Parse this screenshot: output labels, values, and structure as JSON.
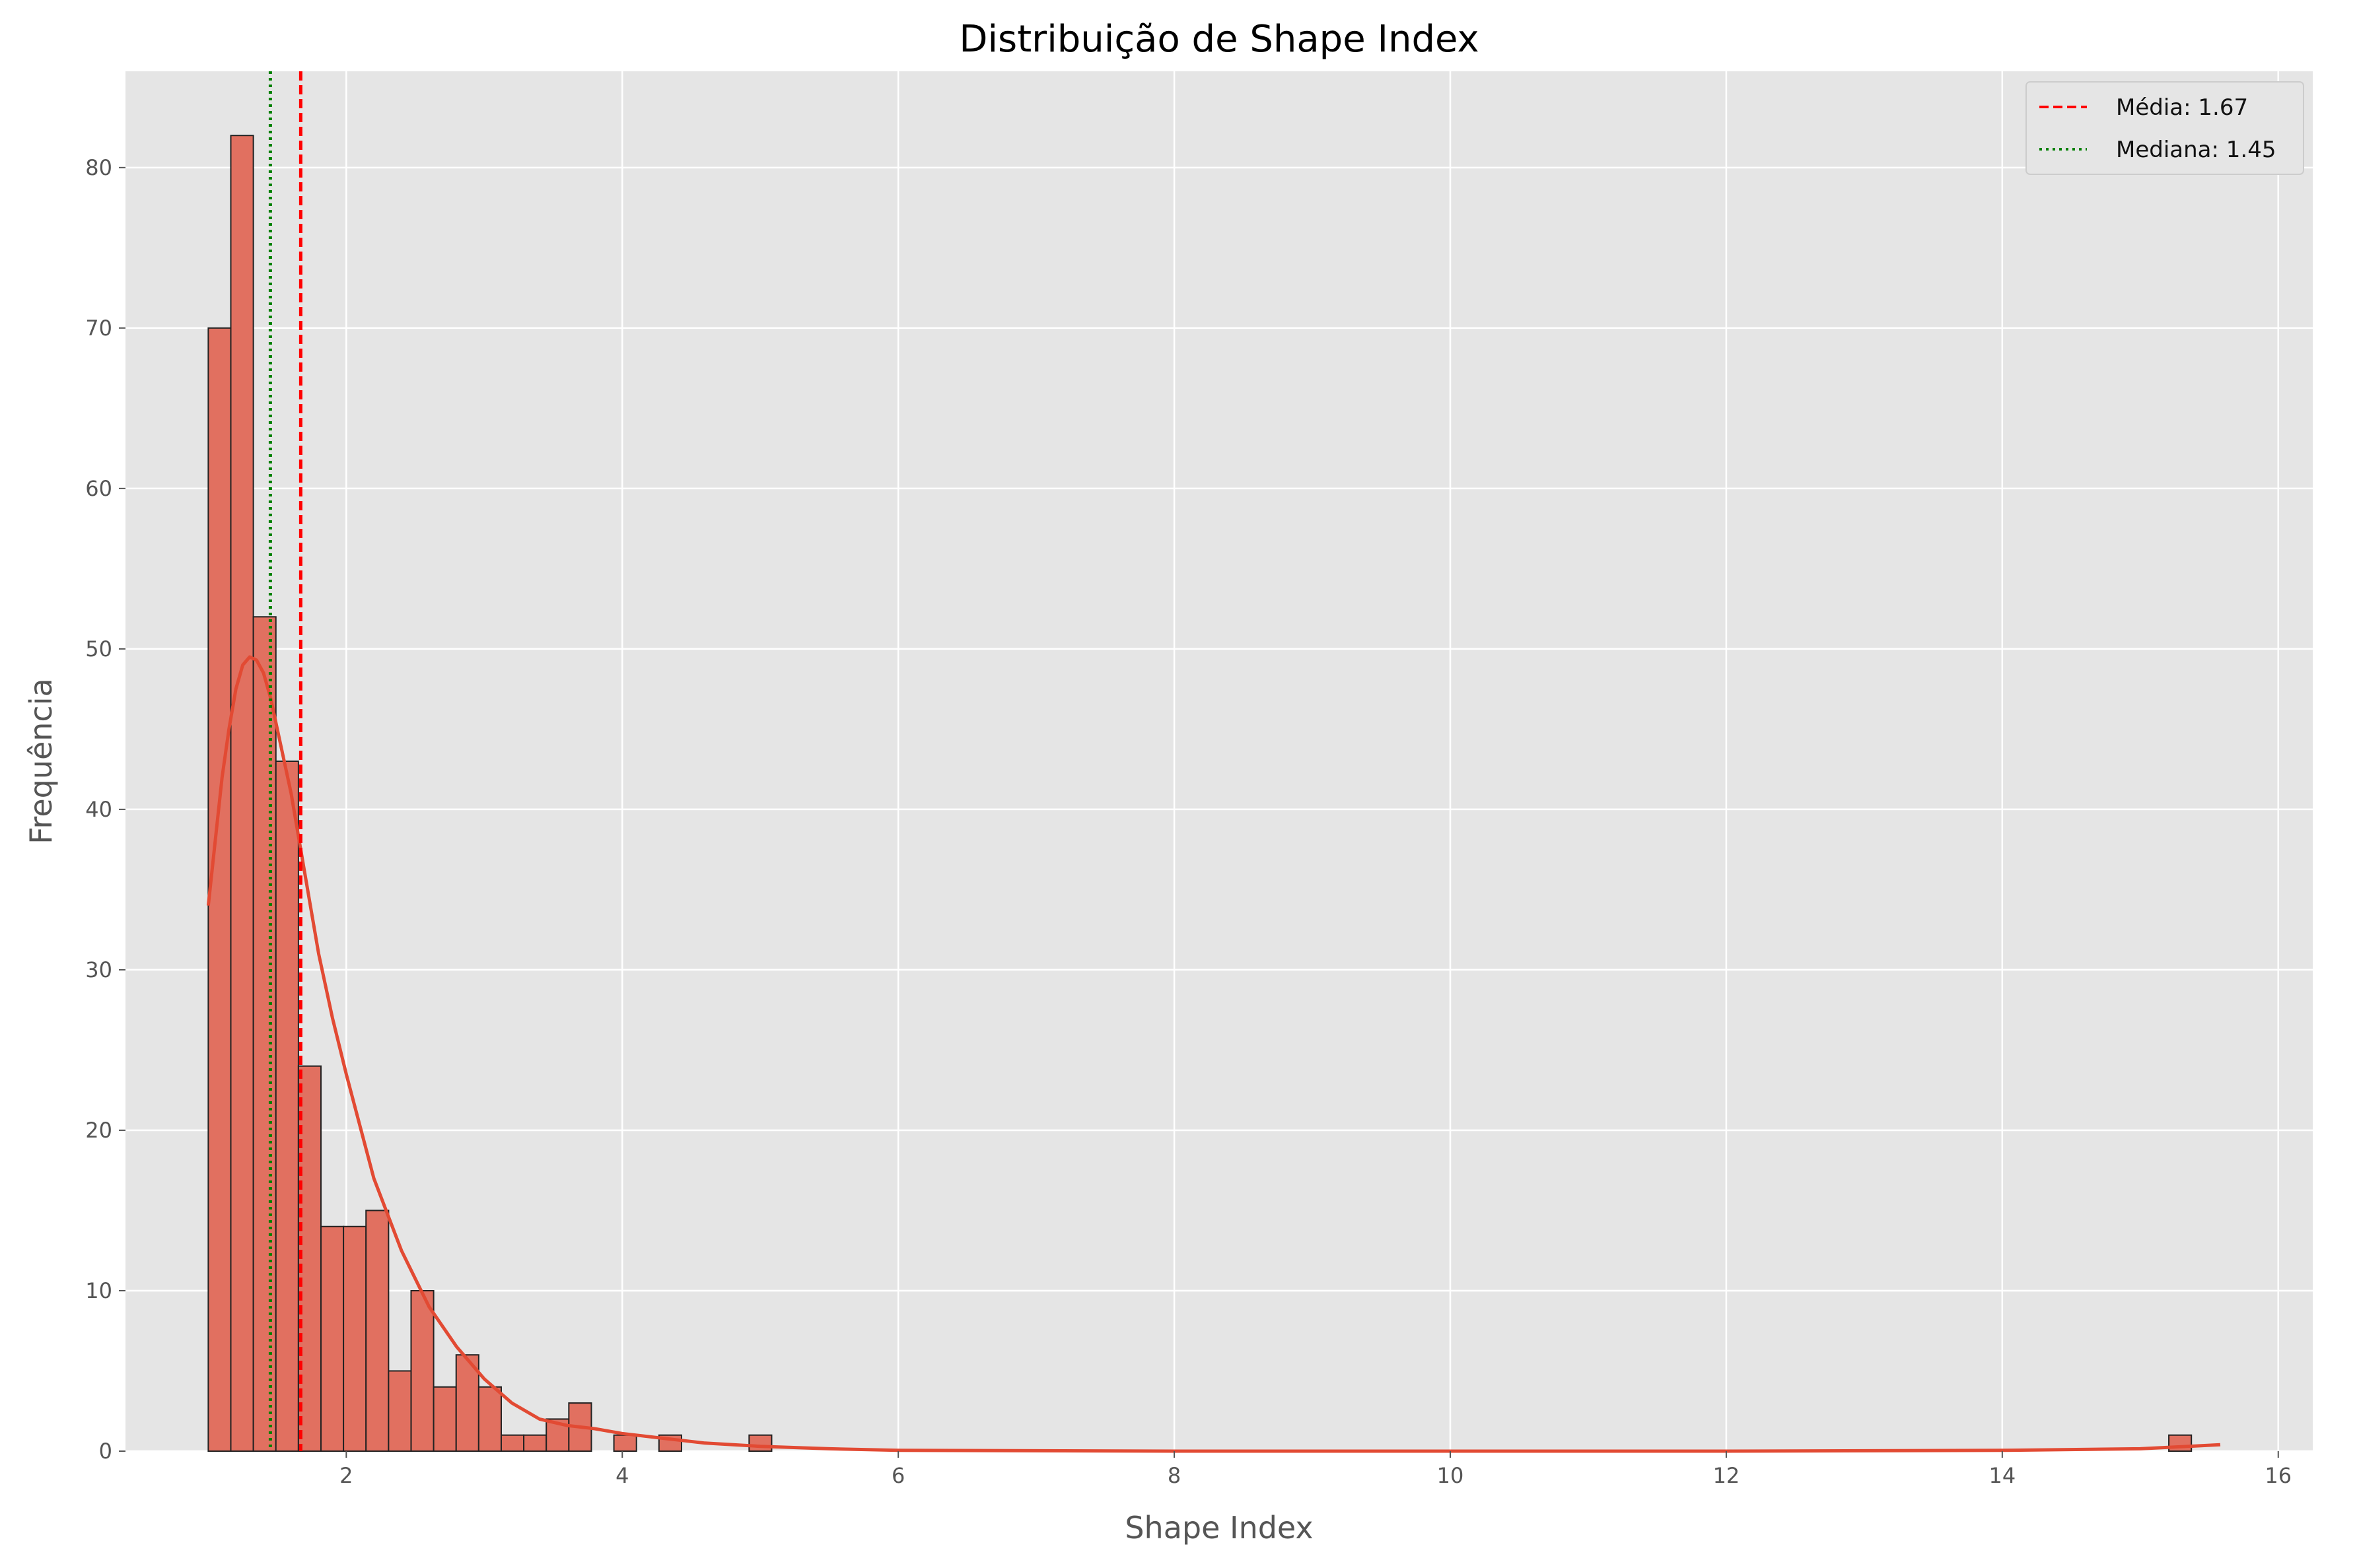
{
  "chart_data": {
    "type": "bar",
    "title": "Distribuição de Shape Index",
    "xlabel": "Shape Index",
    "ylabel": "Frequência",
    "xlim": [
      0.4,
      16.25
    ],
    "ylim": [
      0,
      86
    ],
    "xticks": [
      2,
      4,
      6,
      8,
      10,
      12,
      14,
      16
    ],
    "yticks": [
      0,
      10,
      20,
      30,
      40,
      50,
      60,
      70,
      80
    ],
    "grid": true,
    "legend_position": "top-right",
    "bin_start": 1.0,
    "bin_width": 0.1633,
    "counts": [
      70,
      82,
      52,
      43,
      24,
      14,
      14,
      15,
      5,
      10,
      4,
      6,
      4,
      1,
      1,
      2,
      3,
      0,
      1,
      0,
      1,
      0,
      0,
      0,
      1,
      0,
      0,
      0,
      0,
      0,
      0,
      0,
      0,
      0,
      0,
      0,
      0,
      0,
      0,
      0,
      0,
      0,
      0,
      0,
      0,
      0,
      0,
      0,
      0,
      0,
      0,
      0,
      0,
      0,
      0,
      0,
      0,
      0,
      0,
      0,
      0,
      0,
      0,
      0,
      0,
      0,
      0,
      0,
      0,
      0,
      0,
      0,
      0,
      0,
      0,
      0,
      0,
      0,
      0,
      0,
      0,
      0,
      0,
      0,
      0,
      0,
      0,
      1
    ],
    "kde": {
      "x": [
        1.0,
        1.05,
        1.1,
        1.15,
        1.2,
        1.25,
        1.3,
        1.35,
        1.4,
        1.45,
        1.5,
        1.6,
        1.7,
        1.8,
        1.9,
        2.0,
        2.2,
        2.4,
        2.6,
        2.8,
        3.0,
        3.2,
        3.4,
        3.6,
        3.8,
        4.0,
        4.3,
        4.6,
        5.0,
        5.5,
        6.0,
        8.0,
        10.0,
        12.0,
        14.0,
        15.0,
        15.58
      ],
      "y": [
        34,
        38,
        42,
        45,
        47.5,
        49,
        49.5,
        49.3,
        48.5,
        47,
        45,
        41,
        36,
        31,
        27,
        23.5,
        17,
        12.5,
        9,
        6.5,
        4.5,
        3,
        2,
        1.6,
        1.4,
        1.1,
        0.8,
        0.5,
        0.3,
        0.15,
        0.05,
        0,
        0,
        0,
        0.05,
        0.15,
        0.4
      ]
    },
    "color_bar": "#e17060",
    "color_kde": "#e24a33",
    "reference_lines": [
      {
        "name": "Média: 1.67",
        "x": 1.67,
        "color": "#ff0000",
        "style": "dashed"
      },
      {
        "name": "Mediana: 1.45",
        "x": 1.45,
        "color": "#008000",
        "style": "dotted"
      }
    ]
  }
}
